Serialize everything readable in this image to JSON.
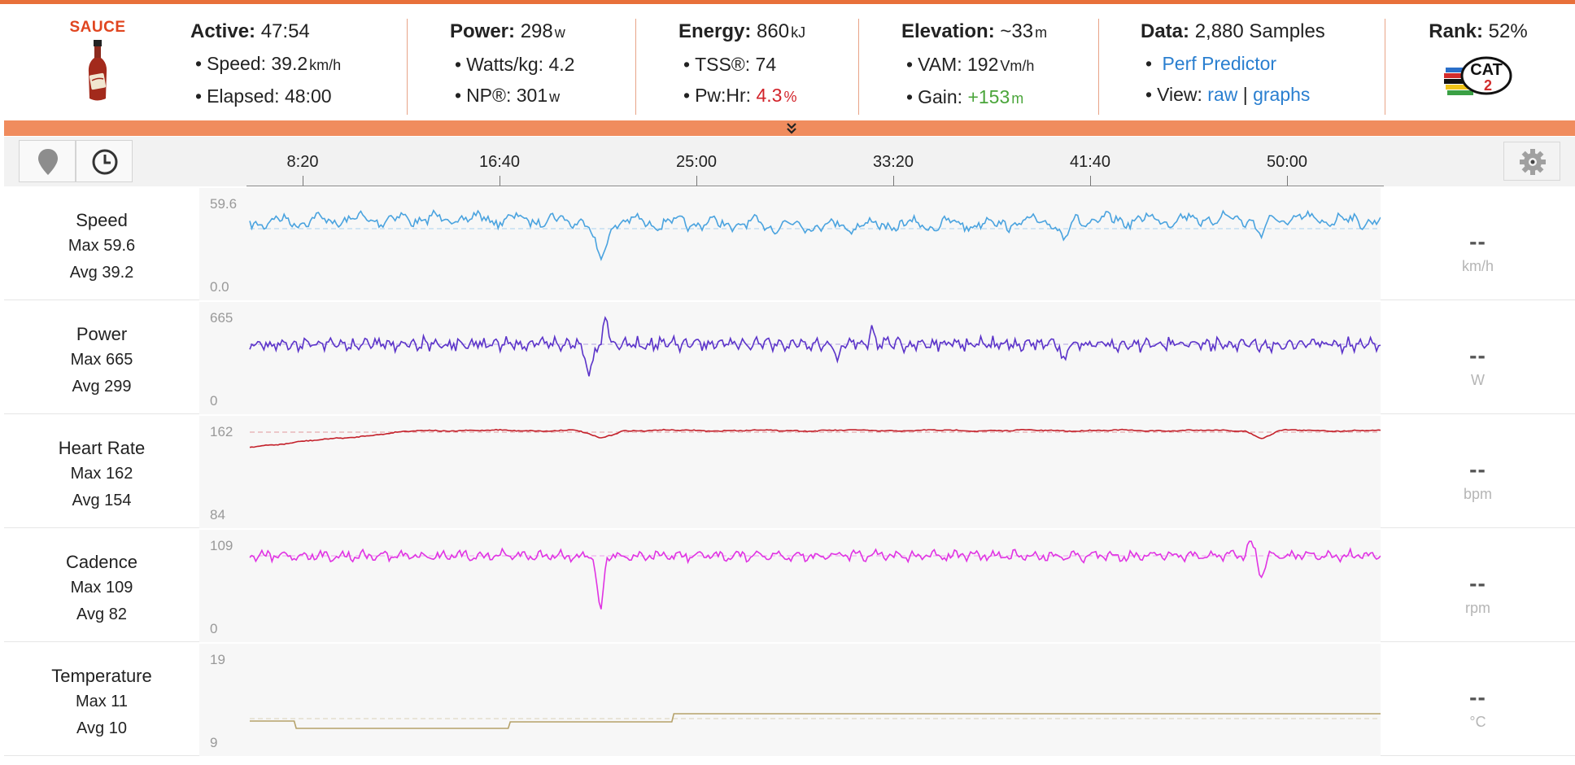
{
  "header": {
    "logo_text": "SAUCE",
    "active": {
      "label": "Active:",
      "value": "47:54"
    },
    "speed": {
      "label": "Speed:",
      "value": "39.2",
      "unit": "km/h"
    },
    "elapsed": {
      "label": "Elapsed:",
      "value": "48:00"
    },
    "power": {
      "label": "Power:",
      "value": "298",
      "unit": "w"
    },
    "watts_kg": {
      "label": "Watts/kg:",
      "value": "4.2"
    },
    "np": {
      "label": "NP®:",
      "value": "301",
      "unit": "w"
    },
    "energy": {
      "label": "Energy:",
      "value": "860",
      "unit": "kJ"
    },
    "tss": {
      "label": "TSS®:",
      "value": "74"
    },
    "pwhr": {
      "label": "Pw:Hr:",
      "value": "4.3",
      "unit": "%"
    },
    "elevation": {
      "label": "Elevation:",
      "value": "~33",
      "unit": "m"
    },
    "vam": {
      "label": "VAM:",
      "value": "192",
      "unit": "Vm/h"
    },
    "gain": {
      "label": "Gain:",
      "value": "+153",
      "unit": "m"
    },
    "data": {
      "label": "Data:",
      "value": "2,880 Samples"
    },
    "perf_predictor": "Perf Predictor",
    "view": {
      "label": "View:",
      "raw": "raw",
      "sep": "|",
      "graphs": "graphs"
    },
    "rank": {
      "label": "Rank:",
      "value": "52%"
    },
    "cat_badge": {
      "text": "CAT",
      "number": "2"
    }
  },
  "timeline": {
    "ticks": [
      "8:20",
      "16:40",
      "25:00",
      "33:20",
      "41:40",
      "50:00"
    ]
  },
  "colors": {
    "accent": "#e8703a",
    "bar": "#f08c5e",
    "speed": "#4aa3df",
    "power": "#5b33c9",
    "heart_rate": "#c4212b",
    "cadence": "#e033e3",
    "temperature": "#b5a26a"
  },
  "icons": {
    "location": "map-pin-icon",
    "time": "clock-icon",
    "settings": "gear-icon",
    "expand": "double-chevron-down-icon"
  },
  "panels": [
    {
      "key": "speed",
      "name": "Speed",
      "max": "Max 59.6",
      "avg": "Avg 39.2",
      "axis_max": "59.6",
      "axis_min": "0.0",
      "readout": "--",
      "unit": "km/h"
    },
    {
      "key": "power",
      "name": "Power",
      "max": "Max 665",
      "avg": "Avg 299",
      "axis_max": "665",
      "axis_min": "0",
      "readout": "--",
      "unit": "W"
    },
    {
      "key": "heart_rate",
      "name": "Heart Rate",
      "max": "Max 162",
      "avg": "Avg 154",
      "axis_max": "162",
      "axis_min": "84",
      "readout": "--",
      "unit": "bpm"
    },
    {
      "key": "cadence",
      "name": "Cadence",
      "max": "Max 109",
      "avg": "Avg 82",
      "axis_max": "109",
      "axis_min": "0",
      "readout": "--",
      "unit": "rpm"
    },
    {
      "key": "temperature",
      "name": "Temperature",
      "max": "Max 11",
      "avg": "Avg 10",
      "axis_max": "19",
      "axis_min": "9",
      "readout": "--",
      "unit": "°C"
    }
  ]
}
